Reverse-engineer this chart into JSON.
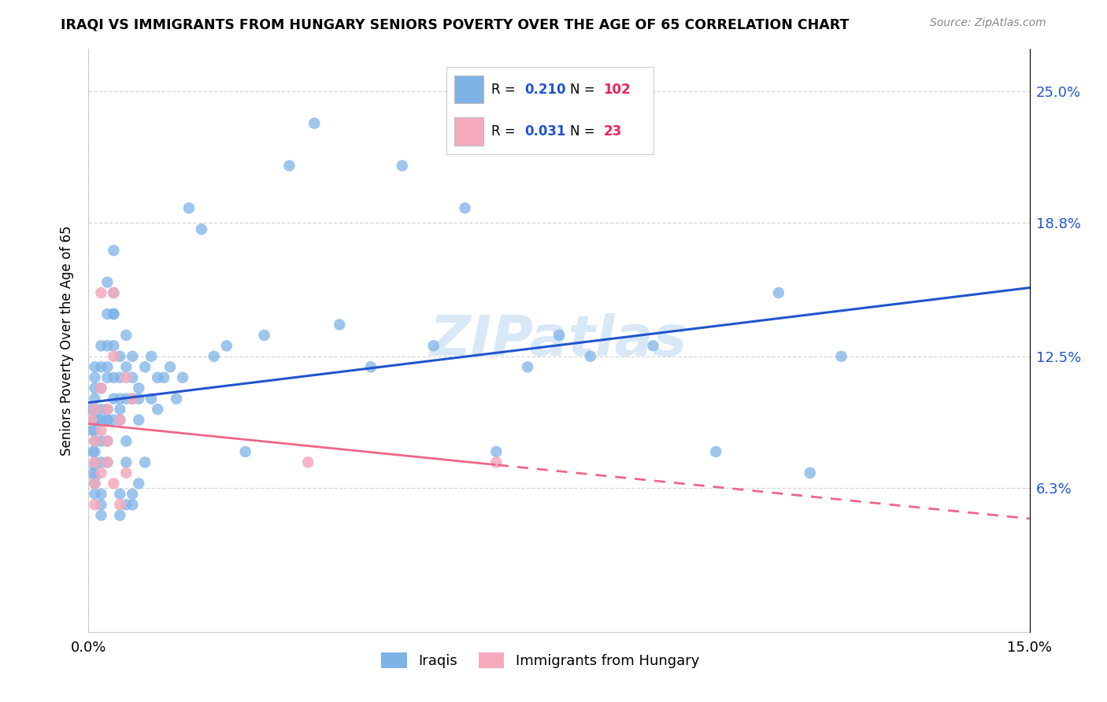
{
  "title": "IRAQI VS IMMIGRANTS FROM HUNGARY SENIORS POVERTY OVER THE AGE OF 65 CORRELATION CHART",
  "source": "Source: ZipAtlas.com",
  "ylabel": "Seniors Poverty Over the Age of 65",
  "xlim": [
    0.0,
    0.15
  ],
  "ylim": [
    -0.005,
    0.27
  ],
  "xtick_positions": [
    0.0,
    0.15
  ],
  "xtick_labels": [
    "0.0%",
    "15.0%"
  ],
  "ytick_values": [
    0.063,
    0.125,
    0.188,
    0.25
  ],
  "ytick_labels": [
    "6.3%",
    "12.5%",
    "18.8%",
    "25.0%"
  ],
  "blue_scatter_color": "#7EB3E8",
  "pink_scatter_color": "#F4AABC",
  "blue_line_color": "#2255CC",
  "pink_line_color": "#EE6688",
  "legend_R_color": "#2255CC",
  "legend_N_color": "#EE2255",
  "grid_color": "#CCCCCC",
  "watermark_text": "ZIPatlas",
  "watermark_color": "#AACCEE",
  "R_blue": 0.21,
  "N_blue": 102,
  "R_pink": 0.031,
  "N_pink": 23,
  "iraqis_x": [
    0.0005,
    0.0006,
    0.0007,
    0.0008,
    0.0009,
    0.001,
    0.001,
    0.001,
    0.001,
    0.001,
    0.001,
    0.001,
    0.001,
    0.001,
    0.001,
    0.001,
    0.001,
    0.001,
    0.001,
    0.0015,
    0.002,
    0.002,
    0.002,
    0.002,
    0.002,
    0.002,
    0.002,
    0.002,
    0.002,
    0.002,
    0.003,
    0.003,
    0.003,
    0.003,
    0.003,
    0.003,
    0.003,
    0.003,
    0.003,
    0.003,
    0.004,
    0.004,
    0.004,
    0.004,
    0.004,
    0.004,
    0.004,
    0.004,
    0.005,
    0.005,
    0.005,
    0.005,
    0.005,
    0.005,
    0.005,
    0.006,
    0.006,
    0.006,
    0.006,
    0.006,
    0.006,
    0.007,
    0.007,
    0.007,
    0.007,
    0.007,
    0.008,
    0.008,
    0.008,
    0.008,
    0.009,
    0.009,
    0.01,
    0.01,
    0.011,
    0.011,
    0.012,
    0.013,
    0.014,
    0.015,
    0.016,
    0.018,
    0.02,
    0.022,
    0.025,
    0.028,
    0.032,
    0.036,
    0.04,
    0.045,
    0.05,
    0.055,
    0.06,
    0.065,
    0.07,
    0.075,
    0.08,
    0.09,
    0.1,
    0.11,
    0.115,
    0.12
  ],
  "iraqis_y": [
    0.1,
    0.09,
    0.08,
    0.095,
    0.07,
    0.105,
    0.095,
    0.085,
    0.075,
    0.065,
    0.06,
    0.11,
    0.068,
    0.073,
    0.115,
    0.12,
    0.1,
    0.09,
    0.08,
    0.095,
    0.095,
    0.085,
    0.075,
    0.1,
    0.13,
    0.06,
    0.055,
    0.05,
    0.11,
    0.12,
    0.145,
    0.13,
    0.095,
    0.115,
    0.12,
    0.16,
    0.075,
    0.085,
    0.095,
    0.1,
    0.115,
    0.175,
    0.145,
    0.13,
    0.105,
    0.095,
    0.145,
    0.155,
    0.1,
    0.115,
    0.125,
    0.105,
    0.095,
    0.06,
    0.05,
    0.12,
    0.135,
    0.105,
    0.085,
    0.075,
    0.055,
    0.105,
    0.115,
    0.125,
    0.055,
    0.06,
    0.11,
    0.105,
    0.095,
    0.065,
    0.12,
    0.075,
    0.125,
    0.105,
    0.115,
    0.1,
    0.115,
    0.12,
    0.105,
    0.115,
    0.195,
    0.185,
    0.125,
    0.13,
    0.08,
    0.135,
    0.215,
    0.235,
    0.14,
    0.12,
    0.215,
    0.13,
    0.195,
    0.08,
    0.12,
    0.135,
    0.125,
    0.13,
    0.08,
    0.155,
    0.07,
    0.125
  ],
  "hungary_x": [
    0.0005,
    0.001,
    0.001,
    0.001,
    0.001,
    0.001,
    0.002,
    0.002,
    0.002,
    0.002,
    0.003,
    0.003,
    0.003,
    0.004,
    0.004,
    0.004,
    0.005,
    0.005,
    0.006,
    0.006,
    0.007,
    0.035,
    0.065
  ],
  "hungary_y": [
    0.095,
    0.085,
    0.075,
    0.065,
    0.055,
    0.1,
    0.11,
    0.09,
    0.07,
    0.155,
    0.1,
    0.085,
    0.075,
    0.125,
    0.155,
    0.065,
    0.095,
    0.055,
    0.115,
    0.07,
    0.105,
    0.075,
    0.075
  ]
}
